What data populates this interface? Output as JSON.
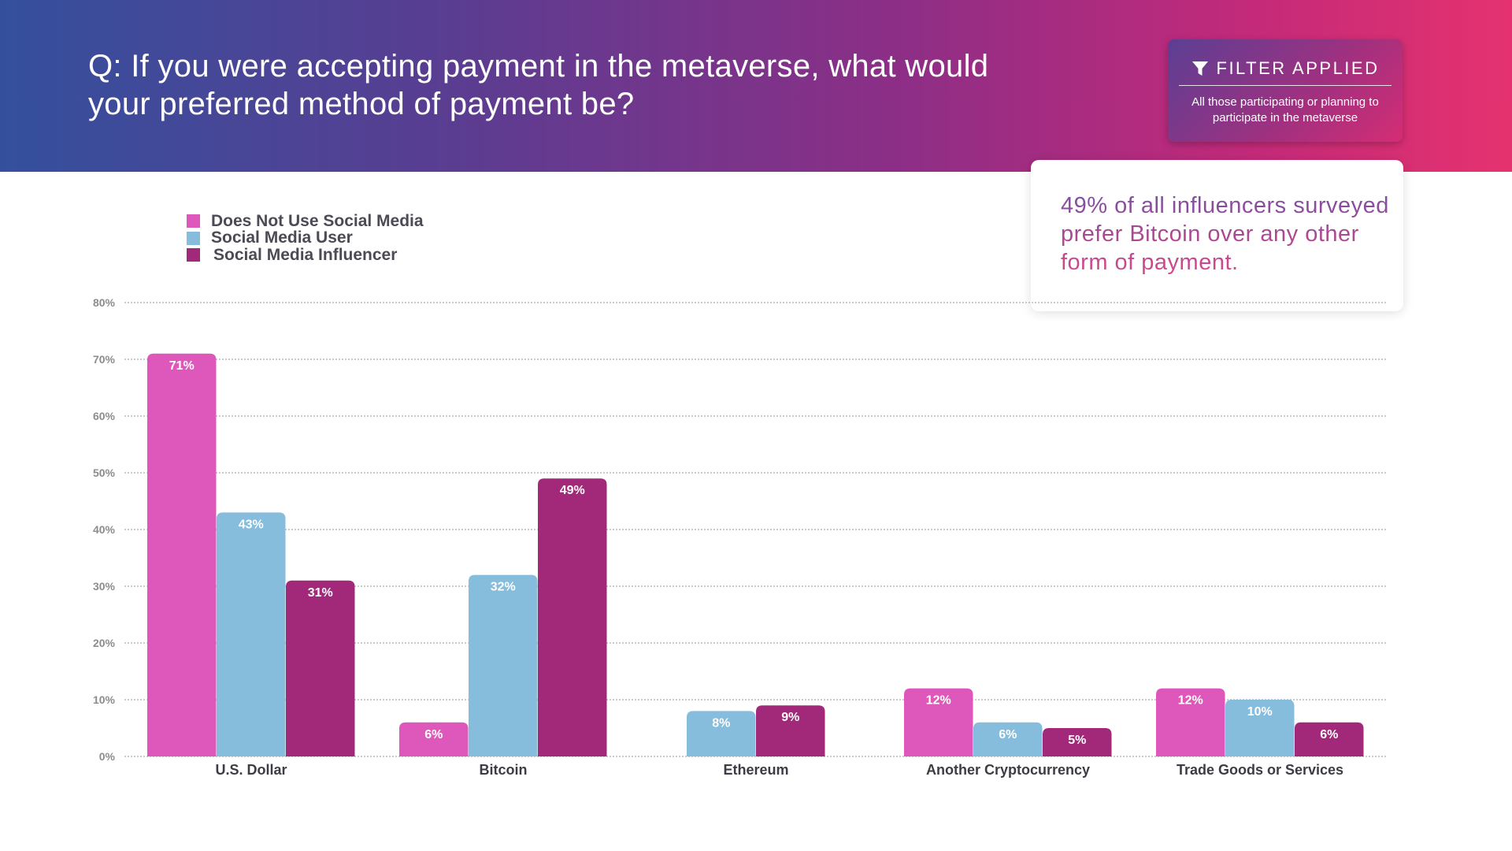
{
  "header": {
    "question": "Q: If you were accepting payment in the metaverse, what would your preferred method of payment be?"
  },
  "filter": {
    "icon": "filter-icon",
    "title": "FILTER APPLIED",
    "description": "All those participating or planning to participate in the metaverse"
  },
  "insight": {
    "text": "49% of all influencers surveyed prefer Bitcoin over any other form of payment."
  },
  "colors": {
    "does_not_use": "#de58bb",
    "social_media_user": "#86bcdc",
    "influencer": "#a2287a"
  },
  "chart_data": {
    "type": "bar",
    "categories": [
      "U.S. Dollar",
      "Bitcoin",
      "Ethereum",
      "Another Cryptocurrency",
      "Trade Goods or Services"
    ],
    "series": [
      {
        "name": "Does Not Use Social Media",
        "color": "#de58bb",
        "values": [
          71,
          6,
          null,
          12,
          12
        ],
        "labels": [
          "71%",
          "6%",
          null,
          "12%",
          "12%"
        ]
      },
      {
        "name": "Social Media User",
        "color": "#86bcdc",
        "values": [
          43,
          32,
          8,
          6,
          10
        ],
        "labels": [
          "43%",
          "32%",
          "8%",
          "6%",
          "10%"
        ]
      },
      {
        "name": "Social Media Influencer",
        "color": "#a2287a",
        "values": [
          31,
          49,
          9,
          5,
          6
        ],
        "labels": [
          "31%",
          "49%",
          "9%",
          "5%",
          "6%"
        ]
      }
    ],
    "ylim": [
      0,
      80
    ],
    "yticks": [
      "0%",
      "10%",
      "20%",
      "30%",
      "40%",
      "50%",
      "60%",
      "70%",
      "80%"
    ],
    "legend_position": "top-left",
    "grid": true
  }
}
